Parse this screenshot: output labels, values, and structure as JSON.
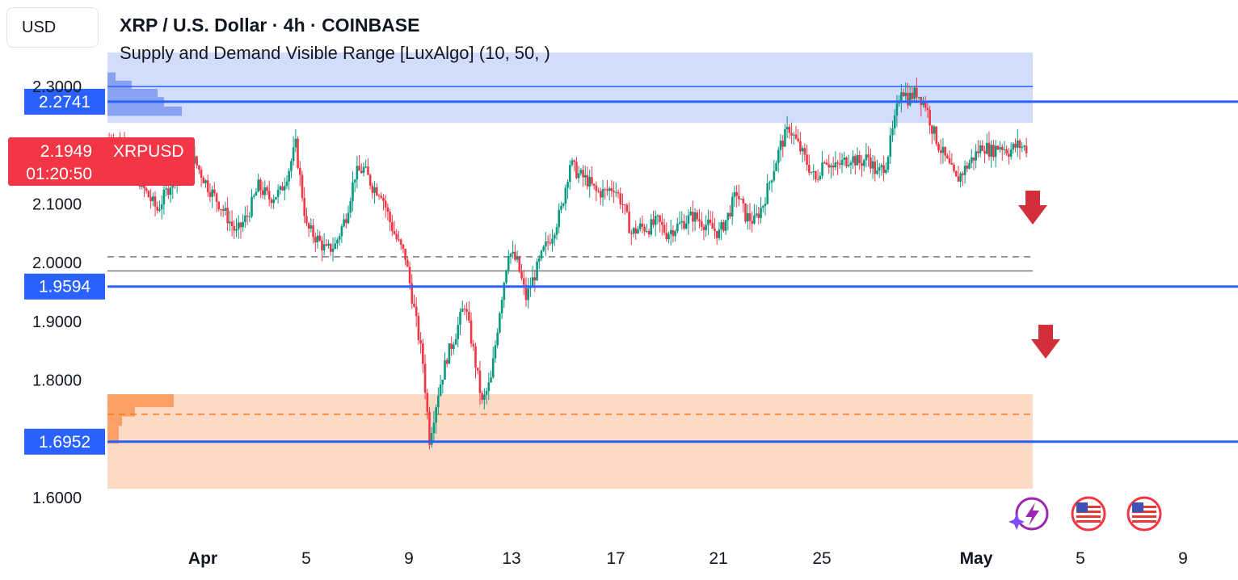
{
  "header": {
    "currency": "USD",
    "title": "XRP / U.S. Dollar · 4h · COINBASE",
    "indicator": "Supply and Demand Visible Range [LuxAlgo] (10, 50, )"
  },
  "colors": {
    "up": "#089981",
    "down": "#f23645",
    "level": "#2962ff",
    "supply_zone": "#d2dcfb",
    "supply_profile": "#7b97ee",
    "demand_zone": "#fddac6",
    "demand_profile": "#fb9a5c",
    "demand_dashed": "#f57c1f",
    "price_tag": "#f23645",
    "arrow": "#d32f3a"
  },
  "chart_data": {
    "type": "candlestick",
    "symbol": "XRPUSD",
    "timeframe": "4h",
    "ylim": [
      1.6,
      2.36
    ],
    "y_ticks": [
      "2.3000",
      "2.1000",
      "2.0000",
      "1.9000",
      "1.8000",
      "1.6000"
    ],
    "x_ticks": [
      "Apr",
      "5",
      "9",
      "13",
      "17",
      "21",
      "25",
      "May",
      "5",
      "9"
    ],
    "current_price": {
      "label": "XRPUSD",
      "value": "2.1949",
      "countdown": "01:20:50"
    },
    "levels": [
      {
        "name": "supply-level",
        "value": "2.2741"
      },
      {
        "name": "equilibrium-level",
        "value": "1.9594"
      },
      {
        "name": "demand-level",
        "value": "1.6952"
      }
    ],
    "zones": {
      "supply": {
        "top": 2.358,
        "bottom": 2.238,
        "avg": 2.3
      },
      "demand": {
        "top": 1.776,
        "bottom": 1.615,
        "avg": 1.742
      }
    },
    "dashed_gray_level": 2.01,
    "gray_level": 1.986,
    "close_path": [
      [
        0,
        2.21
      ],
      [
        8,
        2.2
      ],
      [
        15,
        2.13
      ],
      [
        22,
        2.09
      ],
      [
        30,
        2.15
      ],
      [
        38,
        2.18
      ],
      [
        45,
        2.13
      ],
      [
        52,
        2.09
      ],
      [
        58,
        2.05
      ],
      [
        63,
        2.08
      ],
      [
        68,
        2.13
      ],
      [
        73,
        2.11
      ],
      [
        78,
        2.12
      ],
      [
        82,
        2.16
      ],
      [
        85,
        2.2
      ],
      [
        90,
        2.06
      ],
      [
        95,
        2.04
      ],
      [
        99,
        2.02
      ],
      [
        103,
        2.03
      ],
      [
        108,
        2.08
      ],
      [
        112,
        2.15
      ],
      [
        116,
        2.16
      ],
      [
        120,
        2.13
      ],
      [
        124,
        2.12
      ],
      [
        128,
        2.07
      ],
      [
        131,
        2.04
      ],
      [
        135,
        2.01
      ],
      [
        139,
        1.92
      ],
      [
        143,
        1.83
      ],
      [
        146,
        1.7
      ],
      [
        150,
        1.78
      ],
      [
        154,
        1.84
      ],
      [
        158,
        1.88
      ],
      [
        162,
        1.93
      ],
      [
        166,
        1.85
      ],
      [
        170,
        1.76
      ],
      [
        174,
        1.8
      ],
      [
        178,
        1.92
      ],
      [
        182,
        2.02
      ],
      [
        186,
        2.0
      ],
      [
        190,
        1.94
      ],
      [
        194,
        1.98
      ],
      [
        198,
        2.02
      ],
      [
        202,
        2.05
      ],
      [
        206,
        2.09
      ],
      [
        210,
        2.17
      ],
      [
        214,
        2.15
      ],
      [
        218,
        2.14
      ],
      [
        222,
        2.12
      ],
      [
        226,
        2.12
      ],
      [
        230,
        2.13
      ],
      [
        234,
        2.1
      ],
      [
        238,
        2.05
      ],
      [
        242,
        2.06
      ],
      [
        246,
        2.06
      ],
      [
        250,
        2.07
      ],
      [
        254,
        2.05
      ],
      [
        258,
        2.06
      ],
      [
        262,
        2.07
      ],
      [
        266,
        2.08
      ],
      [
        270,
        2.07
      ],
      [
        274,
        2.06
      ],
      [
        278,
        2.05
      ],
      [
        282,
        2.08
      ],
      [
        286,
        2.12
      ],
      [
        290,
        2.08
      ],
      [
        294,
        2.07
      ],
      [
        298,
        2.1
      ],
      [
        302,
        2.15
      ],
      [
        306,
        2.2
      ],
      [
        310,
        2.23
      ],
      [
        314,
        2.2
      ],
      [
        318,
        2.17
      ],
      [
        322,
        2.14
      ],
      [
        326,
        2.18
      ],
      [
        330,
        2.16
      ],
      [
        334,
        2.17
      ],
      [
        338,
        2.18
      ],
      [
        342,
        2.17
      ],
      [
        346,
        2.18
      ],
      [
        350,
        2.15
      ],
      [
        354,
        2.17
      ],
      [
        358,
        2.24
      ],
      [
        361,
        2.3
      ],
      [
        364,
        2.28
      ],
      [
        368,
        2.29
      ],
      [
        372,
        2.27
      ],
      [
        375,
        2.23
      ],
      [
        378,
        2.2
      ],
      [
        382,
        2.17
      ],
      [
        386,
        2.14
      ],
      [
        390,
        2.16
      ],
      [
        394,
        2.18
      ],
      [
        398,
        2.2
      ],
      [
        402,
        2.19
      ],
      [
        406,
        2.2
      ],
      [
        410,
        2.19
      ],
      [
        414,
        2.2
      ],
      [
        418,
        2.195
      ]
    ],
    "arrows": [
      "down",
      "down"
    ]
  }
}
